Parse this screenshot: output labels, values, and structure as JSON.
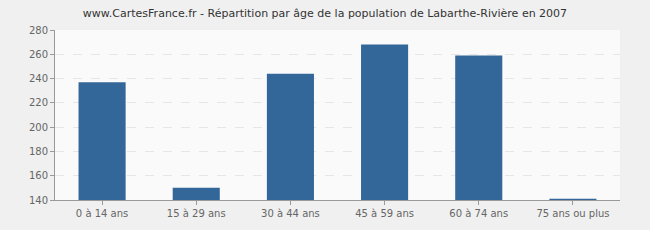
{
  "chart_data": {
    "type": "bar",
    "title": "www.CartesFrance.fr - Répartition par âge de la population de Labarthe-Rivière en 2007",
    "categories": [
      "0 à 14 ans",
      "15 à 29 ans",
      "30 à 44 ans",
      "45 à 59 ans",
      "60 à 74 ans",
      "75 ans ou plus"
    ],
    "values": [
      237,
      150,
      244,
      268,
      259,
      141
    ],
    "color": "#336699",
    "ylim": [
      140,
      280
    ],
    "yticks": [
      140,
      160,
      180,
      200,
      220,
      240,
      260,
      280
    ],
    "grid": true
  }
}
